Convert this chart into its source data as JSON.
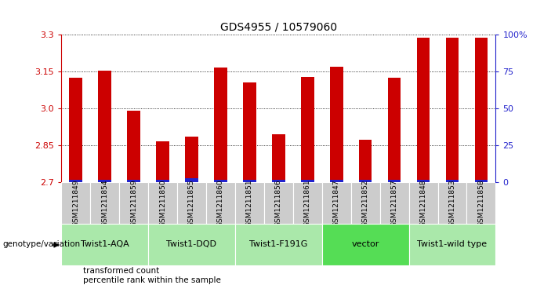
{
  "title": "GDS4955 / 10579060",
  "samples": [
    "GSM1211849",
    "GSM1211854",
    "GSM1211859",
    "GSM1211850",
    "GSM1211855",
    "GSM1211860",
    "GSM1211851",
    "GSM1211856",
    "GSM1211861",
    "GSM1211847",
    "GSM1211852",
    "GSM1211857",
    "GSM1211848",
    "GSM1211853",
    "GSM1211858"
  ],
  "transformed_count": [
    3.125,
    3.152,
    2.99,
    2.865,
    2.885,
    3.165,
    3.105,
    2.895,
    3.127,
    3.168,
    2.872,
    3.125,
    3.285,
    3.285,
    3.285
  ],
  "percentile_values": [
    2,
    2,
    2,
    2,
    3,
    2,
    2,
    2,
    2,
    2,
    2,
    2,
    2,
    2,
    2
  ],
  "bar_base": 2.7,
  "ylim_left": [
    2.7,
    3.3
  ],
  "yticks_left": [
    2.7,
    2.85,
    3.0,
    3.15,
    3.3
  ],
  "yticks_right": [
    0,
    25,
    50,
    75,
    100
  ],
  "ylim_right": [
    0,
    100
  ],
  "groups": [
    {
      "label": "Twist1-AQA",
      "start": 0,
      "end": 3,
      "color": "#aae8aa"
    },
    {
      "label": "Twist1-DQD",
      "start": 3,
      "end": 6,
      "color": "#aae8aa"
    },
    {
      "label": "Twist1-F191G",
      "start": 6,
      "end": 9,
      "color": "#aae8aa"
    },
    {
      "label": "vector",
      "start": 9,
      "end": 12,
      "color": "#55dd55"
    },
    {
      "label": "Twist1-wild type",
      "start": 12,
      "end": 15,
      "color": "#aae8aa"
    }
  ],
  "bar_color_red": "#cc0000",
  "bar_color_blue": "#2222cc",
  "axis_color_left": "#cc0000",
  "axis_color_right": "#2222cc",
  "sample_bg_color": "#cccccc",
  "legend_red_label": "transformed count",
  "legend_blue_label": "percentile rank within the sample",
  "genotype_label": "genotype/variation",
  "bar_width": 0.45
}
